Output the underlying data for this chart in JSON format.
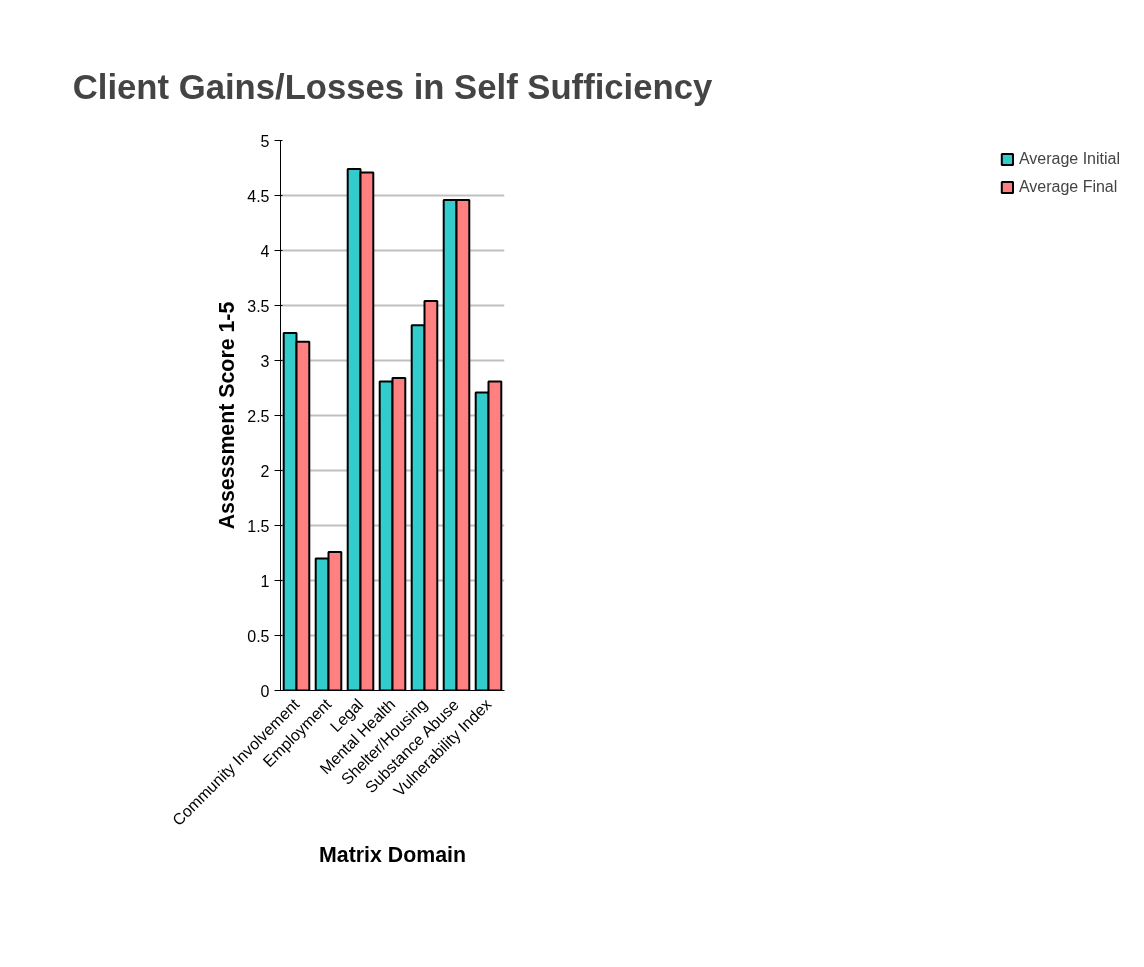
{
  "chart_data": {
    "type": "bar",
    "title": "Client Gains/Losses in Self Sufficiency",
    "xlabel": "Matrix Domain",
    "ylabel": "Assessment Score 1-5",
    "categories": [
      "Community Involvement",
      "Employment",
      "Legal",
      "Mental Health",
      "Shelter/Housing",
      "Substance Abuse",
      "Vulnerability Index"
    ],
    "series": [
      {
        "name": "Average Initial",
        "color": "#33cccc",
        "values": [
          3.25,
          1.2,
          4.74,
          2.81,
          3.32,
          4.46,
          2.71
        ]
      },
      {
        "name": "Average Final",
        "color": "#ff8080",
        "values": [
          3.17,
          1.26,
          4.71,
          2.84,
          3.54,
          4.46,
          2.81
        ]
      }
    ],
    "ylim": [
      0,
      5
    ],
    "yticks": [
      0,
      0.5,
      1,
      1.5,
      2,
      2.5,
      3,
      3.5,
      4,
      4.5,
      5
    ],
    "grid": "y",
    "legend": "right"
  }
}
